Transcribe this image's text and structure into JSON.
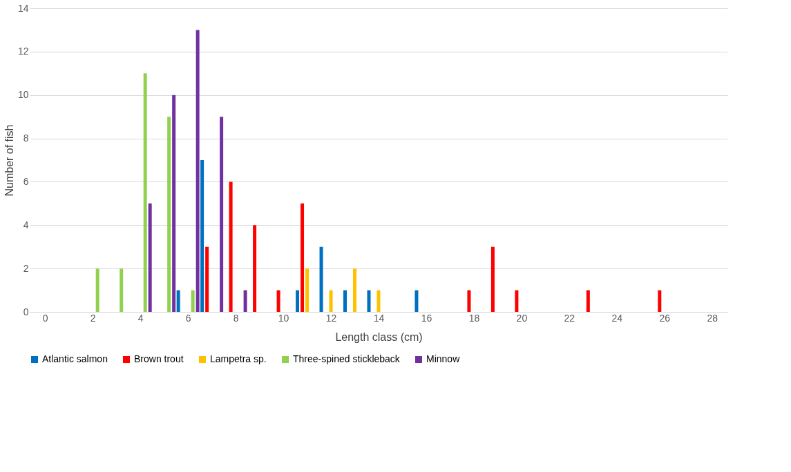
{
  "chart_data": {
    "type": "bar",
    "xlabel": "Length class (cm)",
    "ylabel": "Number of fish",
    "x": [
      0,
      1,
      2,
      3,
      4,
      5,
      6,
      7,
      8,
      9,
      10,
      11,
      12,
      13,
      14,
      15,
      16,
      17,
      18,
      19,
      20,
      21,
      22,
      23,
      24,
      25,
      26,
      27,
      28
    ],
    "series": [
      {
        "name": "Atlantic salmon",
        "color": "#0070c0",
        "values": [
          0,
          0,
          0,
          0,
          0,
          0,
          1,
          7,
          0,
          0,
          0,
          1,
          3,
          1,
          1,
          0,
          1,
          0,
          0,
          0,
          0,
          0,
          0,
          0,
          0,
          0,
          0,
          0,
          0
        ]
      },
      {
        "name": "Brown trout",
        "color": "#ff0000",
        "values": [
          0,
          0,
          0,
          0,
          0,
          0,
          0,
          3,
          6,
          4,
          1,
          5,
          0,
          0,
          0,
          0,
          0,
          0,
          1,
          3,
          1,
          0,
          0,
          1,
          0,
          0,
          1,
          0,
          0
        ]
      },
      {
        "name": "Lampetra sp.",
        "color": "#ffc000",
        "values": [
          0,
          0,
          0,
          0,
          0,
          0,
          0,
          0,
          0,
          0,
          0,
          2,
          1,
          2,
          1,
          0,
          0,
          0,
          0,
          0,
          0,
          0,
          0,
          0,
          0,
          0,
          0,
          0,
          0
        ]
      },
      {
        "name": "Three-spined stickleback",
        "color": "#92d050",
        "values": [
          0,
          0,
          2,
          2,
          11,
          9,
          1,
          0,
          0,
          0,
          0,
          0,
          0,
          0,
          0,
          0,
          0,
          0,
          0,
          0,
          0,
          0,
          0,
          0,
          0,
          0,
          0,
          0,
          0
        ]
      },
      {
        "name": "Minnow",
        "color": "#7030a0",
        "values": [
          0,
          0,
          0,
          0,
          5,
          10,
          13,
          9,
          1,
          0,
          0,
          0,
          0,
          0,
          0,
          0,
          0,
          0,
          0,
          0,
          0,
          0,
          0,
          0,
          0,
          0,
          0,
          0,
          0
        ]
      }
    ],
    "xlim": [
      -0.5,
      28.5
    ],
    "xticks": [
      0,
      2,
      4,
      6,
      8,
      10,
      12,
      14,
      16,
      18,
      20,
      22,
      24,
      26,
      28
    ],
    "ylim": [
      0,
      14
    ],
    "yticks": [
      0,
      2,
      4,
      6,
      8,
      10,
      12,
      14
    ],
    "grid": "y",
    "legend": "bottom"
  }
}
